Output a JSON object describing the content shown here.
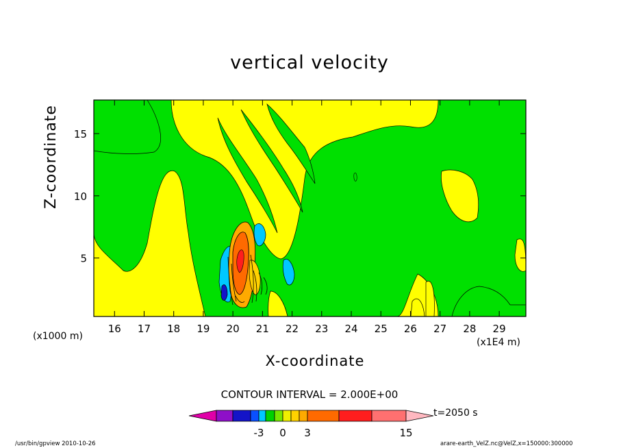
{
  "chart_data": {
    "type": "heatmap",
    "title": "vertical velocity",
    "xlabel": "X-coordinate",
    "ylabel": "Z-coordinate",
    "x_unit_left": "(x1000 m)",
    "x_unit_right": "(x1E4 m)",
    "xlim": [
      15.3,
      29.9
    ],
    "ylim": [
      0.3,
      17.7
    ],
    "x_ticks": [
      16,
      17,
      18,
      19,
      20,
      21,
      22,
      23,
      24,
      25,
      26,
      27,
      28,
      29
    ],
    "y_ticks": [
      5,
      10,
      15
    ],
    "contour_interval_text": "CONTOUR INTERVAL = 2.000E+00",
    "time_text": "t=2050 s",
    "colorbar": {
      "levels": [
        -15,
        -10,
        -5,
        -3,
        -2,
        -1,
        0,
        1,
        2,
        3,
        5,
        10,
        15
      ],
      "labeled_values": [
        "-3",
        "0",
        "3",
        "15"
      ],
      "colors": [
        "#e000a8",
        "#8e10c8",
        "#1414c8",
        "#0a50ff",
        "#00c8ff",
        "#00d200",
        "#78e600",
        "#f0f000",
        "#ffd200",
        "#ffaa00",
        "#ff6a00",
        "#ff1e1e",
        "#ff7070",
        "#ffb8c0"
      ]
    },
    "background_color": "#00e000",
    "positive_color": "#ffff00"
  },
  "footer": {
    "left": "/usr/bin/gpview   2010-10-26",
    "right": "arare-earth_VelZ.nc@VelZ,x=150000:300000"
  }
}
